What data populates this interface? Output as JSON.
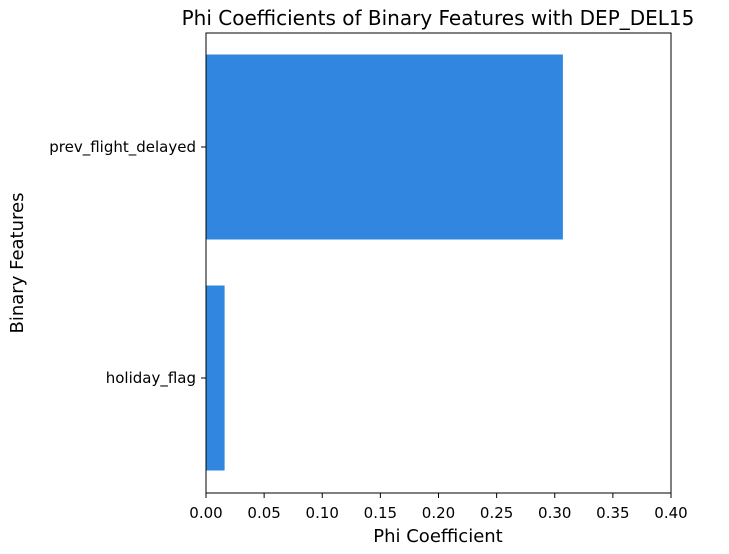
{
  "chart_data": {
    "type": "bar",
    "orientation": "horizontal",
    "title": "Phi Coefficients of Binary Features with DEP_DEL15",
    "xlabel": "Phi Coefficient",
    "ylabel": "Binary Features",
    "categories": [
      "prev_flight_delayed",
      "holiday_flag"
    ],
    "values": [
      0.307,
      0.016
    ],
    "xlim": [
      0,
      0.4
    ],
    "xticks": [
      "0.00",
      "0.05",
      "0.10",
      "0.15",
      "0.20",
      "0.25",
      "0.30",
      "0.35",
      "0.40"
    ],
    "bar_color": "#3187e0",
    "grid": false,
    "legend": "none"
  }
}
